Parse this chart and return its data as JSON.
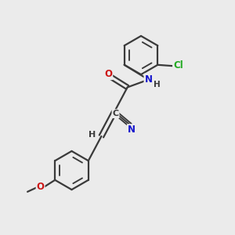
{
  "bg_color": "#ebebeb",
  "bond_color": "#3a3a3a",
  "N_color": "#1414cc",
  "O_color": "#cc1414",
  "Cl_color": "#22aa22",
  "bond_width": 1.6,
  "font_size_atom": 8.5,
  "figsize": [
    3.0,
    3.0
  ],
  "dpi": 100,
  "xlim": [
    0,
    10
  ],
  "ylim": [
    0,
    10
  ]
}
